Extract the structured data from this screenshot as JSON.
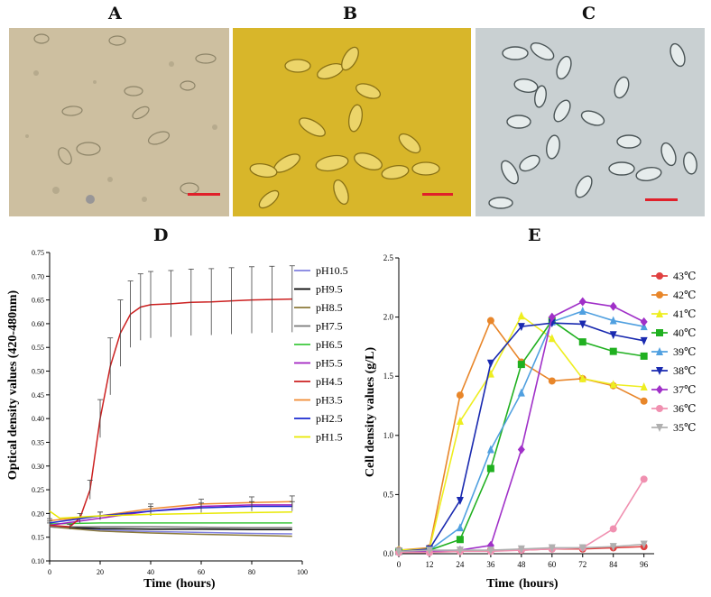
{
  "panels": {
    "A": "A",
    "B": "B",
    "C": "C",
    "D": "D",
    "E": "E"
  },
  "colors": {
    "photoA_bg": "#cdbfa0",
    "photoB_bg": "#d8b62a",
    "photoC_bg": "#c9d0d2",
    "scalebar": "#e0202a"
  },
  "chart_data": [
    {
      "type": "line",
      "panel": "D",
      "xlabel": "Time",
      "xlabel_unit": "(hours)",
      "ylabel": "Optical density values (420-480nm)",
      "xlim": [
        0,
        100
      ],
      "ylim": [
        0.1,
        0.75
      ],
      "xticks": [
        0,
        20,
        40,
        60,
        80,
        100
      ],
      "yticks": [
        0.1,
        0.15,
        0.2,
        0.25,
        0.3,
        0.35,
        0.4,
        0.45,
        0.5,
        0.55,
        0.6,
        0.65,
        0.7,
        0.75
      ],
      "legend_position": "right",
      "series": [
        {
          "name": "pH10.5",
          "color": "#8080e0",
          "x": [
            0,
            20,
            40,
            60,
            80,
            96
          ],
          "values": [
            0.172,
            0.165,
            0.162,
            0.16,
            0.158,
            0.157
          ]
        },
        {
          "name": "pH9.5",
          "color": "#000000",
          "x": [
            0,
            20,
            40,
            60,
            80,
            96
          ],
          "values": [
            0.172,
            0.168,
            0.167,
            0.167,
            0.166,
            0.166
          ]
        },
        {
          "name": "pH8.5",
          "color": "#8b7a3a",
          "x": [
            0,
            20,
            40,
            60,
            80,
            96
          ],
          "values": [
            0.172,
            0.163,
            0.159,
            0.156,
            0.154,
            0.152
          ]
        },
        {
          "name": "pH7.5",
          "color": "#777777",
          "x": [
            0,
            20,
            40,
            60,
            80,
            96
          ],
          "values": [
            0.172,
            0.172,
            0.172,
            0.171,
            0.17,
            0.17
          ]
        },
        {
          "name": "pH6.5",
          "color": "#3cc83c",
          "x": [
            0,
            20,
            40,
            60,
            80,
            96
          ],
          "values": [
            0.178,
            0.18,
            0.18,
            0.18,
            0.18,
            0.18
          ]
        },
        {
          "name": "pH5.5",
          "color": "#a020c0",
          "x": [
            0,
            20,
            40,
            60,
            80,
            96
          ],
          "values": [
            0.175,
            0.19,
            0.205,
            0.215,
            0.218,
            0.218
          ]
        },
        {
          "name": "pH4.5",
          "color": "#cc2020",
          "x": [
            0,
            8,
            12,
            16,
            20,
            24,
            28,
            32,
            36,
            40,
            48,
            56,
            64,
            72,
            80,
            88,
            96
          ],
          "values": [
            0.175,
            0.172,
            0.19,
            0.25,
            0.4,
            0.51,
            0.58,
            0.62,
            0.635,
            0.64,
            0.642,
            0.645,
            0.646,
            0.648,
            0.65,
            0.651,
            0.652
          ],
          "err": [
            0.005,
            0.005,
            0.01,
            0.02,
            0.04,
            0.06,
            0.07,
            0.07,
            0.07,
            0.07,
            0.07,
            0.07,
            0.07,
            0.07,
            0.07,
            0.07,
            0.07
          ]
        },
        {
          "name": "pH3.5",
          "color": "#f08a30",
          "x": [
            0,
            20,
            40,
            60,
            80,
            96
          ],
          "values": [
            0.185,
            0.195,
            0.21,
            0.22,
            0.223,
            0.225
          ],
          "err": [
            0.004,
            0.008,
            0.01,
            0.01,
            0.012,
            0.012
          ]
        },
        {
          "name": "pH2.5",
          "color": "#1a2ad0",
          "x": [
            0,
            20,
            40,
            60,
            80,
            96
          ],
          "values": [
            0.18,
            0.195,
            0.205,
            0.212,
            0.215,
            0.215
          ],
          "err": [
            0.004,
            0.008,
            0.01,
            0.01,
            0.01,
            0.01
          ]
        },
        {
          "name": "pH1.5",
          "color": "#e8e800",
          "x": [
            0,
            4,
            20,
            40,
            60,
            80,
            96
          ],
          "values": [
            0.205,
            0.19,
            0.195,
            0.198,
            0.2,
            0.202,
            0.203
          ]
        }
      ]
    },
    {
      "type": "line",
      "panel": "E",
      "xlabel": "Time",
      "xlabel_unit": "(hours)",
      "ylabel": "Cell density values (g/L)",
      "xlim": [
        0,
        100
      ],
      "ylim": [
        0,
        2.5
      ],
      "xticks": [
        0,
        12,
        24,
        36,
        48,
        60,
        72,
        84,
        96
      ],
      "yticks": [
        0.0,
        0.5,
        1.0,
        1.5,
        2.0,
        2.5
      ],
      "legend_position": "right",
      "x": [
        0,
        12,
        24,
        36,
        48,
        60,
        72,
        84,
        96
      ],
      "series": [
        {
          "name": "43℃",
          "color": "#e04040",
          "marker": "circle",
          "values": [
            0.02,
            0.02,
            0.02,
            0.03,
            0.03,
            0.04,
            0.04,
            0.05,
            0.06
          ]
        },
        {
          "name": "42℃",
          "color": "#e8862a",
          "marker": "circle",
          "values": [
            0.03,
            0.05,
            1.34,
            1.97,
            1.62,
            1.46,
            1.48,
            1.42,
            1.29
          ]
        },
        {
          "name": "41℃",
          "color": "#eeee20",
          "marker": "triangle",
          "values": [
            0.03,
            0.04,
            1.12,
            1.52,
            2.01,
            1.82,
            1.48,
            1.43,
            1.41
          ]
        },
        {
          "name": "40℃",
          "color": "#20b020",
          "marker": "square",
          "values": [
            0.02,
            0.03,
            0.12,
            0.72,
            1.6,
            1.97,
            1.79,
            1.71,
            1.67
          ]
        },
        {
          "name": "39℃",
          "color": "#50a0e0",
          "marker": "triangle",
          "values": [
            0.02,
            0.03,
            0.22,
            0.88,
            1.36,
            1.96,
            2.05,
            1.97,
            1.92
          ]
        },
        {
          "name": "38℃",
          "color": "#1a2ab0",
          "marker": "triangle-down",
          "values": [
            0.02,
            0.04,
            0.45,
            1.61,
            1.92,
            1.95,
            1.94,
            1.85,
            1.8
          ]
        },
        {
          "name": "37℃",
          "color": "#a030c8",
          "marker": "diamond",
          "values": [
            0.02,
            0.02,
            0.03,
            0.07,
            0.88,
            2.0,
            2.13,
            2.09,
            1.96
          ]
        },
        {
          "name": "36℃",
          "color": "#f090b0",
          "marker": "circle",
          "values": [
            0.01,
            0.01,
            0.02,
            0.02,
            0.03,
            0.04,
            0.05,
            0.21,
            0.63
          ]
        },
        {
          "name": "35℃",
          "color": "#b0b0b0",
          "marker": "triangle-down",
          "values": [
            0.02,
            0.03,
            0.03,
            0.03,
            0.04,
            0.05,
            0.05,
            0.06,
            0.08
          ]
        }
      ]
    }
  ]
}
